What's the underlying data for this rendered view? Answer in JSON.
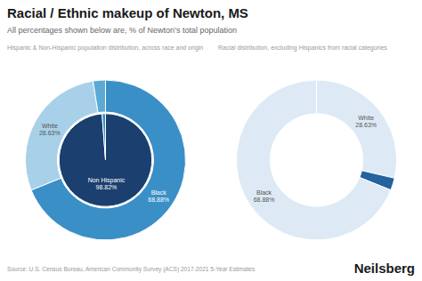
{
  "title": "Racial / Ethnic makeup of Newton, MS",
  "subtitle": "All percentages shown below are, % of Newton’s total population",
  "annotations": [
    "Source: U.S. Census Bureau, American Community Survey (ACS) 2017-2021 5-Year Estimates",
    "Neilsberg"
  ],
  "chart_data": [
    {
      "type": "donut",
      "title": "Hispanic & Non-Hispanic population distribution, across race and origin",
      "series": [
        {
          "categories": [
            "Black",
            "White",
            null
          ],
          "values": [
            68.88,
            28.63,
            2.49
          ],
          "value_labels": [
            "68.88%",
            "28.63%",
            null
          ],
          "colors": [
            "#3a8fc7",
            "#a8d0e8",
            "#5aaad4"
          ]
        },
        {
          "categories": [
            "Non Hispanic",
            null
          ],
          "values": [
            98.82,
            1.18
          ],
          "value_labels": [
            "98.82%",
            null
          ],
          "colors": [
            "#1b3f6e",
            "#3a8fc7"
          ]
        }
      ]
    },
    {
      "type": "donut",
      "title": "Racial distribution, excluding Hispanics from racial categories",
      "series": [
        {
          "categories": [
            "White",
            null,
            "Black"
          ],
          "values": [
            28.63,
            2.49,
            68.88
          ],
          "value_labels": [
            "28.63%",
            null,
            "68.88%"
          ],
          "colors": [
            "#ddeaf5",
            "#2462a0",
            "#ddeaf5"
          ]
        }
      ]
    }
  ]
}
